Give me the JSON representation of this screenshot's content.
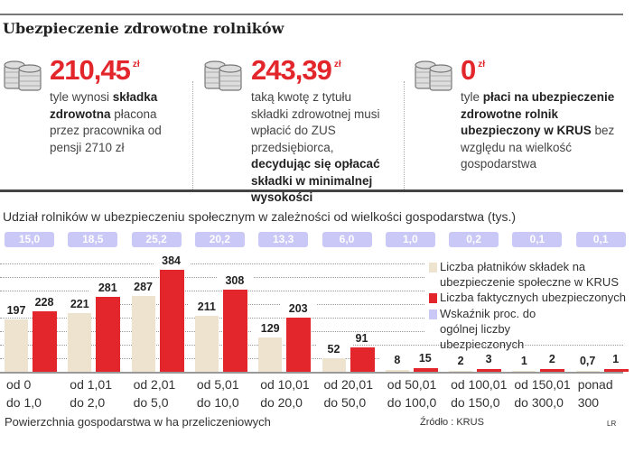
{
  "title": "Ubezpieczenie zdrowotne rolników",
  "facts": [
    {
      "value": "210,45",
      "unit": "zł",
      "parts": [
        [
          "tyle wynosi ",
          false
        ],
        [
          "składka zdrowotna",
          true
        ],
        [
          " płacona przez pracownika od pensji 2710 zł",
          false
        ]
      ]
    },
    {
      "value": "243,39",
      "unit": "zł",
      "parts": [
        [
          "taką kwotę z tytułu składki zdrowotnej musi wpłacić do ZUS przedsiębiorca, ",
          false
        ],
        [
          "decydując się opłacać składki w minimalnej wysokości",
          true
        ]
      ]
    },
    {
      "value": "0",
      "unit": "zł",
      "parts": [
        [
          "tyle ",
          false
        ],
        [
          "płaci na ubezpieczenie zdrowotne rolnik ubezpieczony w KRUS",
          true
        ],
        [
          " bez względu na wielkość gospodarstwa",
          false
        ]
      ]
    }
  ],
  "chart_data": {
    "type": "bar",
    "title": "Udział rolników w ubezpieczeniu społecznym w zależności od wielkości gospodarstwa (tys.)",
    "xlabel": "Powierzchnia gospodarstwa w ha przeliczeniowych",
    "categories": [
      [
        "od 0",
        "do 1,0"
      ],
      [
        "od 1,01",
        "do 2,0"
      ],
      [
        "od 2,01",
        "do 5,0"
      ],
      [
        "od 5,01",
        "do 10,0"
      ],
      [
        "od 10,01",
        "do 20,0"
      ],
      [
        "od 20,01",
        "do 50,0"
      ],
      [
        "od 50,01",
        "do 100,0"
      ],
      [
        "od 100,01",
        "do 150,0"
      ],
      [
        "od 150,01",
        "do 300,0"
      ],
      [
        "ponad",
        "300"
      ]
    ],
    "series": [
      {
        "name": "Liczba płatników składek na ubezpieczenie społeczne w KRUS",
        "color": "#ede3cf",
        "values": [
          197,
          221,
          287,
          211,
          129,
          52,
          8,
          2,
          1,
          0.7
        ],
        "labels": [
          "197",
          "221",
          "287",
          "211",
          "129",
          "52",
          "8",
          "2",
          "1",
          "0,7"
        ]
      },
      {
        "name": "Liczba faktycznych ubezpieczonych",
        "color": "#e3262b",
        "values": [
          228,
          281,
          384,
          308,
          203,
          91,
          15,
          3,
          2,
          1
        ],
        "labels": [
          "228",
          "281",
          "384",
          "308",
          "203",
          "91",
          "15",
          "3",
          "2",
          "1"
        ]
      },
      {
        "name": "Wskaźnik proc. do ogólnej liczby ubezpieczonych",
        "color": "#c9c8f6",
        "values": [
          15.0,
          18.5,
          25.2,
          20.2,
          13.3,
          6.0,
          1.0,
          0.2,
          0.1,
          0.1
        ],
        "labels": [
          "15,0",
          "18,5",
          "25,2",
          "20,2",
          "13,3",
          "6,0",
          "1,0",
          "0,2",
          "0,1",
          "0,1"
        ]
      }
    ],
    "ylim": [
      0,
      400
    ],
    "grid": true,
    "legend": "right"
  },
  "source": "Źródło : KRUS",
  "credit": "LR"
}
